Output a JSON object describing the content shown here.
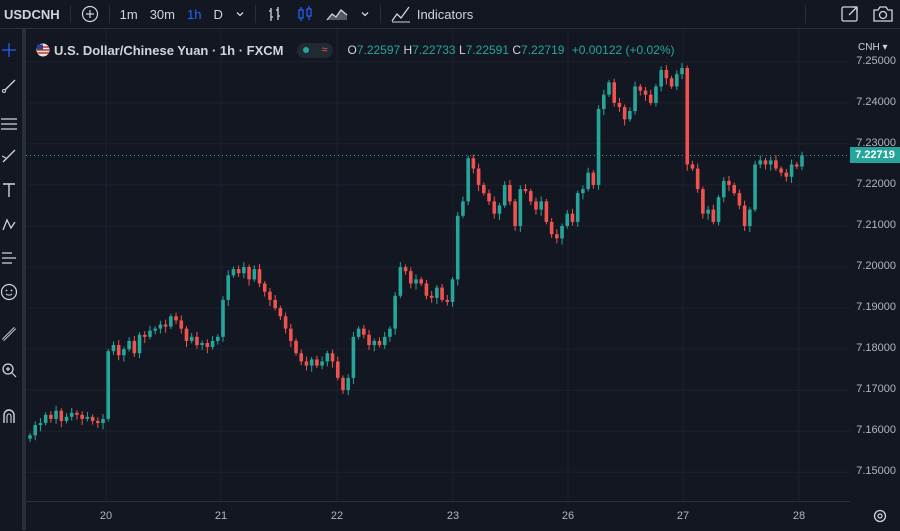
{
  "toolbar": {
    "symbol": "USDCNH",
    "intervals": [
      "1m",
      "30m",
      "1h",
      "D"
    ],
    "active_interval": "1h",
    "indicators_label": "Indicators"
  },
  "legend": {
    "title": "U.S. Dollar/Chinese Yuan · 1h · FXCM",
    "open_label": "O",
    "open": "7.22597",
    "high_label": "H",
    "high": "7.22733",
    "low_label": "L",
    "low": "7.22591",
    "close_label": "C",
    "close": "7.22719",
    "change": "+0.00122 (+0.02%)"
  },
  "price_axis": {
    "currency": "CNH ▾",
    "current_price": "7.22719"
  },
  "colors": {
    "up": "#26a69a",
    "down": "#ef5350",
    "background": "#131722",
    "grid": "#1e222d"
  },
  "chart_data": {
    "type": "candlestick",
    "x_ticks": [
      "20",
      "21",
      "22",
      "23",
      "26",
      "27",
      "28"
    ],
    "y_ticks": [
      "7.15000",
      "7.16000",
      "7.17000",
      "7.18000",
      "7.19000",
      "7.20000",
      "7.21000",
      "7.22000",
      "7.23000",
      "7.24000",
      "7.25000"
    ],
    "ylim": [
      7.143,
      7.258
    ],
    "last_price": 7.22719,
    "closes": [
      7.159,
      7.1615,
      7.162,
      7.164,
      7.163,
      7.165,
      7.1625,
      7.1635,
      7.1645,
      7.164,
      7.163,
      7.1635,
      7.1625,
      7.162,
      7.163,
      7.1795,
      7.181,
      7.1785,
      7.18,
      7.182,
      7.179,
      7.1835,
      7.183,
      7.1845,
      7.185,
      7.186,
      7.1855,
      7.188,
      7.187,
      7.185,
      7.182,
      7.183,
      7.181,
      7.1815,
      7.1805,
      7.182,
      7.183,
      7.192,
      7.198,
      7.1995,
      7.1985,
      7.2,
      7.197,
      7.1995,
      7.196,
      7.194,
      7.192,
      7.19,
      7.188,
      7.185,
      7.182,
      7.179,
      7.177,
      7.176,
      7.1775,
      7.176,
      7.177,
      7.179,
      7.177,
      7.173,
      7.17,
      7.173,
      7.183,
      7.185,
      7.1835,
      7.181,
      7.182,
      7.181,
      7.183,
      7.185,
      7.193,
      7.2,
      7.199,
      7.196,
      7.197,
      7.196,
      7.193,
      7.1925,
      7.195,
      7.192,
      7.1915,
      7.197,
      7.2125,
      7.216,
      7.2265,
      7.224,
      7.22,
      7.218,
      7.216,
      7.213,
      7.215,
      7.22,
      7.216,
      7.21,
      7.219,
      7.2185,
      7.216,
      7.214,
      7.216,
      7.211,
      7.208,
      7.207,
      7.21,
      7.213,
      7.211,
      7.218,
      7.219,
      7.223,
      7.22,
      7.2385,
      7.242,
      7.245,
      7.24,
      7.239,
      7.236,
      7.238,
      7.244,
      7.243,
      7.242,
      7.24,
      7.244,
      7.248,
      7.246,
      7.244,
      7.247,
      7.2485,
      7.225,
      7.224,
      7.219,
      7.213,
      7.214,
      7.211,
      7.217,
      7.221,
      7.22,
      7.218,
      7.215,
      7.21,
      7.214,
      7.225,
      7.226,
      7.225,
      7.226,
      7.224,
      7.223,
      7.222,
      7.225,
      7.2245,
      7.2272
    ]
  }
}
